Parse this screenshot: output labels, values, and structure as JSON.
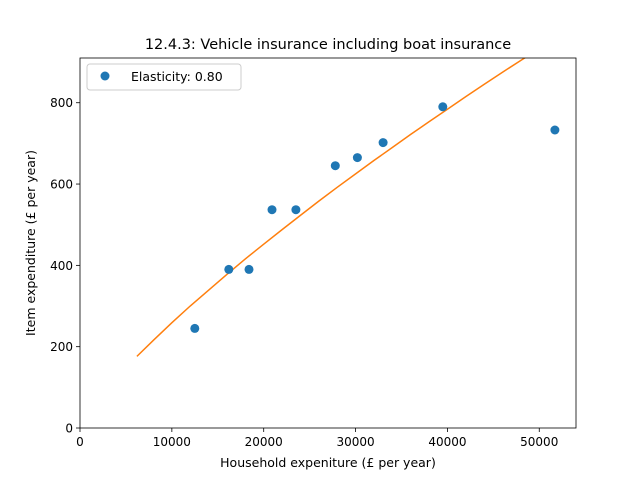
{
  "chart_data": {
    "type": "scatter",
    "title": "12.4.3: Vehicle insurance including boat insurance",
    "xlabel": "Household expeniture (£ per year)",
    "ylabel": "Item expenditure (£ per year)",
    "xlim": [
      0,
      54000
    ],
    "ylim": [
      0,
      910
    ],
    "xticks": [
      0,
      10000,
      20000,
      30000,
      40000,
      50000
    ],
    "yticks": [
      0,
      200,
      400,
      600,
      800
    ],
    "grid": false,
    "legend_position": "top-left",
    "series": [
      {
        "name": "Elasticity: 0.80",
        "kind": "points",
        "color": "#1f77b4",
        "x": [
          12500,
          16200,
          18400,
          20900,
          23500,
          27800,
          30200,
          33000,
          39500,
          51700
        ],
        "y": [
          245,
          390,
          390,
          537,
          537,
          645,
          665,
          702,
          790,
          733
        ]
      },
      {
        "kind": "fit-line",
        "color": "#ff7f0e",
        "elasticity": 0.8,
        "x": [
          6200,
          8000,
          10000,
          12000,
          14000,
          16000,
          18000,
          20000,
          22000,
          24000,
          26000,
          28000,
          30000,
          32000,
          34000,
          36000,
          38000,
          40000,
          42000,
          44000,
          46000,
          48000,
          49500
        ],
        "y": [
          176,
          216,
          259,
          300,
          339,
          378,
          416,
          452,
          488,
          523,
          558,
          592,
          625,
          658,
          690,
          722,
          753,
          784,
          815,
          845,
          875,
          904,
          926
        ]
      }
    ]
  }
}
